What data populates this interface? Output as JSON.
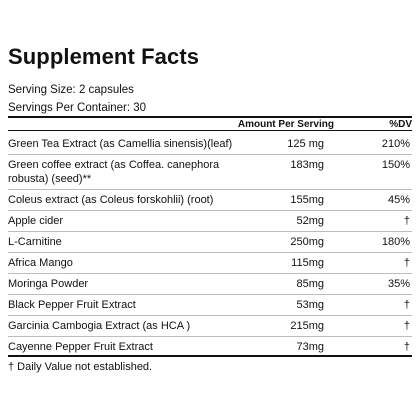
{
  "title": "Supplement Facts",
  "serving_size": "Serving Size: 2 capsules",
  "servings_per_container": "Servings Per Container: 30",
  "columns": {
    "amount": "Amount Per Serving",
    "dv": "%DV"
  },
  "rows": [
    {
      "name": "Green Tea Extract (as Camellia sinensis)(leaf)",
      "amount": "125 mg",
      "dv": "210%"
    },
    {
      "name": "Green coffee extract (as Coffea. canephora robusta) (seed)**",
      "amount": "183mg",
      "dv": "150%"
    },
    {
      "name": "Coleus extract (as Coleus forskohlii) (root)",
      "amount": "155mg",
      "dv": "45%"
    },
    {
      "name": "Apple cider",
      "amount": "52mg",
      "dv": "†"
    },
    {
      "name": "L-Carnitine",
      "amount": "250mg",
      "dv": "180%"
    },
    {
      "name": "Africa Mango",
      "amount": "115mg",
      "dv": "†"
    },
    {
      "name": "Moringa Powder",
      "amount": "85mg",
      "dv": "35%"
    },
    {
      "name": "Black Pepper Fruit Extract",
      "amount": "53mg",
      "dv": "†"
    },
    {
      "name": "Garcinia Cambogia Extract (as HCA )",
      "amount": "215mg",
      "dv": "†"
    },
    {
      "name": "Cayenne Pepper Fruit Extract",
      "amount": "73mg",
      "dv": "†"
    }
  ],
  "footnote": "† Daily Value not established."
}
